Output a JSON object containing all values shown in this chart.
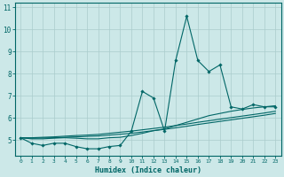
{
  "xlabel": "Humidex (Indice chaleur)",
  "bg_color": "#cce8e8",
  "grid_color": "#aacccc",
  "line_color": "#006666",
  "xlim": [
    -0.5,
    23.5
  ],
  "ylim": [
    4.3,
    11.2
  ],
  "yticks": [
    5,
    6,
    7,
    8,
    9,
    10,
    11
  ],
  "xticks": [
    0,
    1,
    2,
    3,
    4,
    5,
    6,
    7,
    8,
    9,
    10,
    11,
    12,
    13,
    14,
    15,
    16,
    17,
    18,
    19,
    20,
    21,
    22,
    23
  ],
  "series_x": [
    0,
    1,
    2,
    3,
    4,
    5,
    6,
    7,
    8,
    9,
    10,
    11,
    12,
    13,
    14,
    15,
    16,
    17,
    18,
    19,
    20,
    21,
    22,
    23
  ],
  "series_y_main": [
    5.1,
    4.85,
    4.75,
    4.85,
    4.85,
    4.7,
    4.6,
    4.6,
    4.7,
    4.75,
    5.4,
    7.2,
    6.9,
    5.4,
    8.6,
    10.6,
    8.6,
    8.1,
    8.4,
    6.5,
    6.4,
    6.6,
    6.5,
    6.5
  ],
  "series_y_trend1": [
    5.1,
    5.05,
    5.05,
    5.08,
    5.1,
    5.08,
    5.05,
    5.05,
    5.1,
    5.12,
    5.2,
    5.3,
    5.42,
    5.5,
    5.65,
    5.8,
    5.95,
    6.1,
    6.2,
    6.3,
    6.38,
    6.45,
    6.5,
    6.55
  ],
  "series_y_trend2": [
    5.1,
    5.1,
    5.12,
    5.14,
    5.17,
    5.2,
    5.22,
    5.25,
    5.3,
    5.35,
    5.4,
    5.46,
    5.52,
    5.58,
    5.65,
    5.72,
    5.8,
    5.87,
    5.94,
    6.01,
    6.08,
    6.15,
    6.22,
    6.3
  ],
  "series_y_trend3": [
    5.1,
    5.08,
    5.09,
    5.1,
    5.12,
    5.14,
    5.16,
    5.18,
    5.22,
    5.26,
    5.3,
    5.36,
    5.42,
    5.48,
    5.55,
    5.62,
    5.7,
    5.77,
    5.84,
    5.91,
    5.98,
    6.05,
    6.12,
    6.2
  ]
}
